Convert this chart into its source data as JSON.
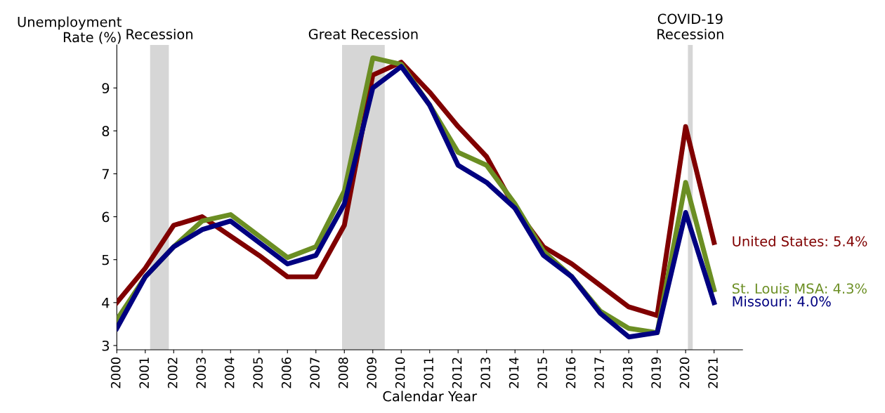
{
  "chart_data": {
    "type": "line",
    "ylabel": "Unemployment\nRate (%)",
    "xlabel": "Calendar Year",
    "x": [
      2000,
      2001,
      2002,
      2003,
      2004,
      2005,
      2006,
      2007,
      2008,
      2009,
      2010,
      2011,
      2012,
      2013,
      2014,
      2015,
      2016,
      2017,
      2018,
      2019,
      2020,
      2021
    ],
    "series": [
      {
        "name": "United States: 5.4%",
        "color": "#800000",
        "values": [
          4.0,
          4.8,
          5.8,
          6.0,
          5.55,
          5.1,
          4.6,
          4.6,
          5.8,
          9.3,
          9.6,
          8.9,
          8.1,
          7.4,
          6.2,
          5.3,
          4.9,
          4.4,
          3.9,
          3.7,
          8.1,
          5.4
        ]
      },
      {
        "name": "St. Louis MSA: 4.3%",
        "color": "#6b8e23",
        "values": [
          3.6,
          4.6,
          5.3,
          5.9,
          6.05,
          5.55,
          5.05,
          5.3,
          6.6,
          9.7,
          9.55,
          8.6,
          7.5,
          7.2,
          6.3,
          5.2,
          4.6,
          3.8,
          3.4,
          3.3,
          6.8,
          4.3
        ]
      },
      {
        "name": "Missouri: 4.0%",
        "color": "#000080",
        "values": [
          3.4,
          4.6,
          5.3,
          5.7,
          5.9,
          5.4,
          4.9,
          5.1,
          6.3,
          9.0,
          9.5,
          8.6,
          7.2,
          6.8,
          6.2,
          5.1,
          4.6,
          3.75,
          3.2,
          3.3,
          6.1,
          4.0
        ]
      }
    ],
    "bands": [
      {
        "axis": "x",
        "from": 2001.17,
        "to": 2001.83,
        "label": "Recession",
        "color": "#d6d6d6"
      },
      {
        "axis": "x",
        "from": 2007.92,
        "to": 2009.42,
        "label": "Great Recession",
        "color": "#d6d6d6"
      },
      {
        "axis": "x",
        "from": 2020.08,
        "to": 2020.25,
        "label": "COVID-19\nRecession",
        "color": "#d6d6d6"
      }
    ],
    "xlim": [
      2000,
      2022
    ],
    "xticks": [
      2000,
      2001,
      2002,
      2003,
      2004,
      2005,
      2006,
      2007,
      2008,
      2009,
      2010,
      2011,
      2012,
      2013,
      2014,
      2015,
      2016,
      2017,
      2018,
      2019,
      2020,
      2021
    ],
    "ylim": [
      2.9,
      10
    ],
    "yticks": [
      3,
      4,
      5,
      6,
      7,
      8,
      9
    ],
    "grid": false,
    "legend": false
  }
}
